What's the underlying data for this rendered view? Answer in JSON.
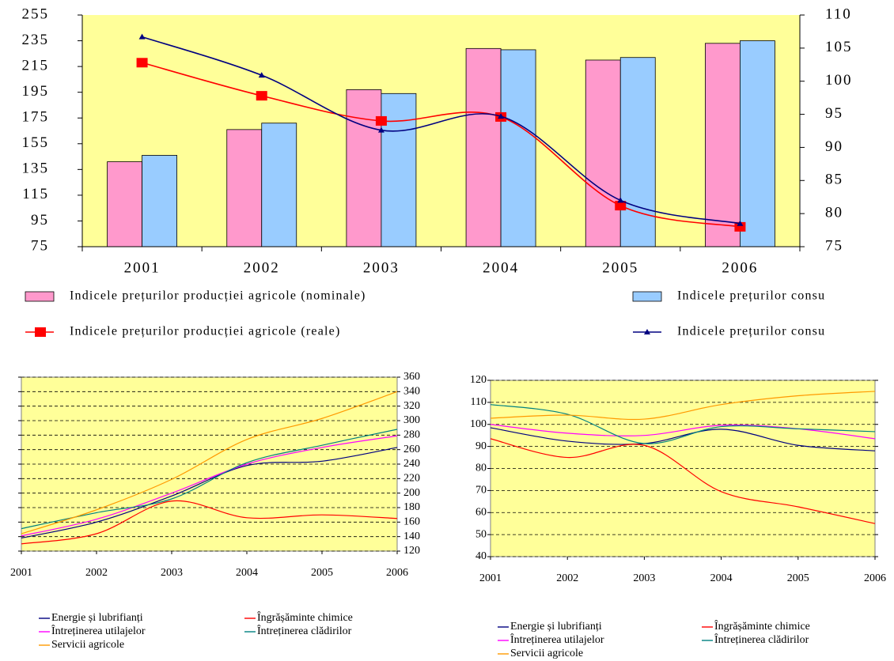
{
  "chart_data": [
    {
      "type": "bar",
      "categories": [
        "2001",
        "2002",
        "2003",
        "2004",
        "2005",
        "2006"
      ],
      "background": "#ffff99",
      "ylim": [
        75,
        255
      ],
      "yticks": [
        75,
        95,
        115,
        135,
        155,
        175,
        195,
        215,
        235,
        255
      ],
      "y2lim": [
        75,
        110
      ],
      "y2ticks": [
        75,
        80,
        85,
        90,
        95,
        100,
        105,
        110
      ],
      "series": [
        {
          "name": "Indicele prețurilor producției agricole (nominale)",
          "type": "bar",
          "color": "#ff99cc",
          "values": [
            141,
            166,
            197,
            229,
            220,
            233
          ]
        },
        {
          "name": "Indicele prețurilor consu",
          "type": "bar",
          "color": "#99ccff",
          "values": [
            146,
            171,
            194,
            228,
            222,
            235
          ]
        },
        {
          "name": "Indicele prețurilor producției agricole (reale)",
          "type": "line",
          "axis": "y2",
          "marker": "square",
          "color": "#ff0000",
          "values": [
            102.8,
            97.8,
            94,
            94.6,
            81.2,
            78
          ]
        },
        {
          "name": "Indicele prețurilor consu",
          "type": "line",
          "axis": "y2",
          "marker": "triangle",
          "color": "#000080",
          "values": [
            106.7,
            100.9,
            92.6,
            94.7,
            82,
            78.5
          ]
        }
      ]
    },
    {
      "type": "line",
      "background": "#ffff99",
      "grid": true,
      "y_axis_side": "right",
      "x": [
        2001,
        2002,
        2003,
        2004,
        2005,
        2006
      ],
      "xlim": [
        2001,
        2006
      ],
      "xticks": [
        2001,
        2002,
        2003,
        2004,
        2005,
        2006
      ],
      "ylim": [
        120,
        360
      ],
      "yticks": [
        120,
        140,
        160,
        180,
        200,
        220,
        240,
        260,
        280,
        300,
        320,
        340,
        360
      ],
      "series": [
        {
          "name": "Energie și lubrifianți",
          "color": "#000080",
          "values": [
            138,
            160,
            196,
            238,
            244,
            263
          ]
        },
        {
          "name": "Îngrășăminte chimice",
          "color": "#ff0000",
          "values": [
            130,
            144,
            189,
            166,
            170,
            165
          ]
        },
        {
          "name": "Întreținerea utilajelor",
          "color": "#ff00ff",
          "values": [
            141,
            164,
            200,
            240,
            263,
            279
          ]
        },
        {
          "name": "Întreținerea clădirilor",
          "color": "#008080",
          "values": [
            151,
            173,
            192,
            242,
            266,
            288
          ]
        },
        {
          "name": "Servicii agricole",
          "color": "#ff9900",
          "values": [
            144,
            177,
            219,
            274,
            303,
            340
          ]
        }
      ]
    },
    {
      "type": "line",
      "background": "#ffff99",
      "grid": true,
      "y_axis_side": "left",
      "x": [
        2001,
        2002,
        2003,
        2004,
        2005,
        2006
      ],
      "xlim": [
        2001,
        2006
      ],
      "xticks": [
        2001,
        2002,
        2003,
        2004,
        2005,
        2006
      ],
      "ylim": [
        40,
        120
      ],
      "yticks": [
        40,
        50,
        60,
        70,
        80,
        90,
        100,
        110,
        120
      ],
      "series": [
        {
          "name": "Energie și lubrifianți",
          "color": "#000080",
          "values": [
            98.5,
            92.4,
            91.3,
            97.8,
            90.5,
            88
          ]
        },
        {
          "name": "Îngrășăminte chimice",
          "color": "#ff0000",
          "values": [
            93.5,
            85,
            90.5,
            69.5,
            62.6,
            55
          ]
        },
        {
          "name": "Întreținerea utilajelor",
          "color": "#ff00ff",
          "values": [
            100,
            96,
            95,
            99.6,
            98,
            93.5
          ]
        },
        {
          "name": "Întreținerea clădirilor",
          "color": "#008080",
          "values": [
            109,
            104.6,
            91.3,
            99,
            98,
            96.7
          ]
        },
        {
          "name": "Servicii agricole",
          "color": "#ff9900",
          "values": [
            102.8,
            104.2,
            102.4,
            109,
            113,
            115
          ]
        }
      ]
    }
  ]
}
